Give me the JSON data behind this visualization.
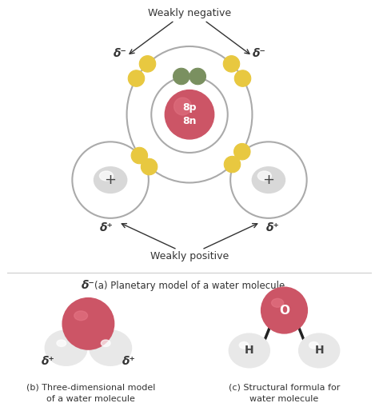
{
  "bg_color": "#ffffff",
  "title_a": "(a) Planetary model of a water molecule",
  "title_b": "(b) Three-dimensional model\nof a water molecule",
  "title_c": "(c) Structural formula for\nwater molecule",
  "weakly_negative": "Weakly negative",
  "weakly_positive": "Weakly positive",
  "nucleus_color": "#cc5566",
  "nucleus_label": "8p\n8n",
  "electron_color_yellow": "#e8c840",
  "electron_color_green": "#7a9060",
  "line_color": "#aaaaaa",
  "text_color": "#333333",
  "bond_color": "#222222",
  "O_ball_color": "#cc5566",
  "H_ball_color": "#e8e8e8",
  "H_outline": "#333333",
  "ye_edge": "#b09010"
}
